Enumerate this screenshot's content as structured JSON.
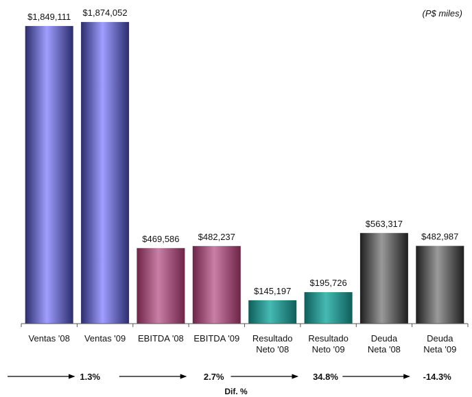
{
  "units_note": "(P$ miles)",
  "chart_data": {
    "type": "bar",
    "title": "",
    "xlabel": "",
    "ylabel": "",
    "ylim": [
      0,
      1900000
    ],
    "grid": false,
    "legend": "none",
    "categories": [
      [
        "Ventas  '08"
      ],
      [
        "Ventas  '09"
      ],
      [
        "EBITDA '08"
      ],
      [
        "EBITDA '09"
      ],
      [
        "Resultado",
        "Neto '08"
      ],
      [
        "Resultado",
        "Neto '09"
      ],
      [
        "Deuda",
        "Neta '08"
      ],
      [
        "Deuda",
        "Neta '09"
      ]
    ],
    "values": [
      1849111,
      1874052,
      469586,
      482237,
      145197,
      195726,
      563317,
      482987
    ],
    "value_labels": [
      "$1,849,111",
      "$1,874,052",
      "$469,586",
      "$482,237",
      "$145,197",
      "$195,726",
      "$563,317",
      "$482,987"
    ],
    "bar_groups": [
      0,
      0,
      1,
      1,
      2,
      2,
      3,
      3
    ],
    "group_colors": [
      {
        "edge": "#2c2c6e",
        "mid": "#9f9fff"
      },
      {
        "edge": "#6e2447",
        "mid": "#c97fa6"
      },
      {
        "edge": "#0e5e5a",
        "mid": "#46bab3"
      },
      {
        "edge": "#1e1e1e",
        "mid": "#9a9a9a"
      }
    ],
    "differences": {
      "title": "Dif. %",
      "values": [
        "1.3%",
        "2.7%",
        "34.8%",
        "-14.3%"
      ]
    }
  }
}
